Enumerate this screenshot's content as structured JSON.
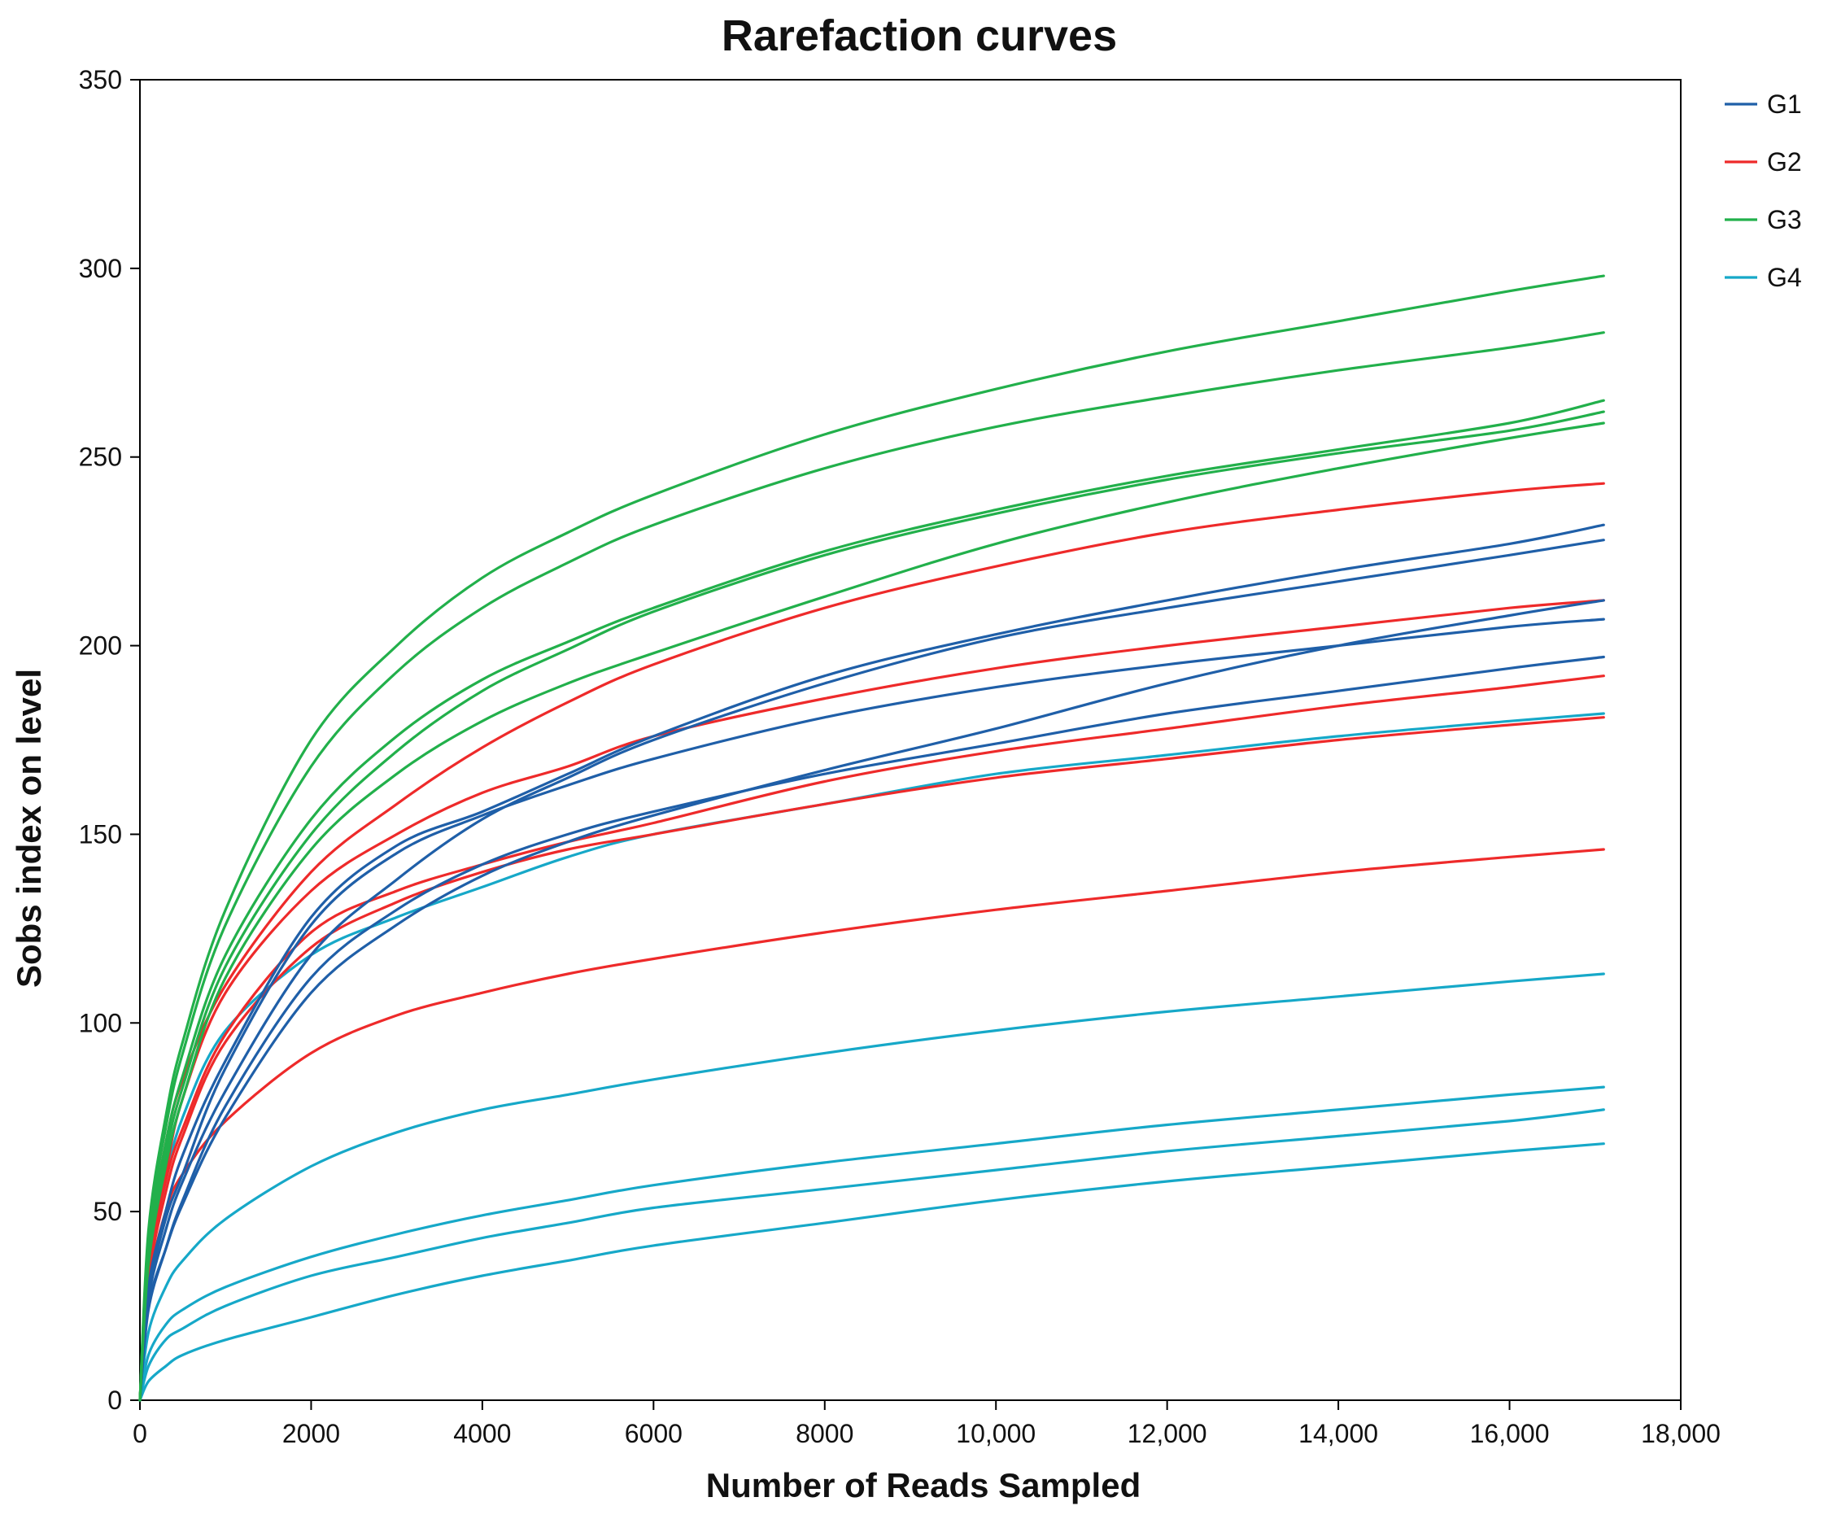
{
  "chart_data": {
    "type": "line",
    "title": "Rarefaction curves",
    "xlabel": "Number of Reads Sampled",
    "ylabel": "Sobs index on level",
    "xlim": [
      0,
      18000
    ],
    "ylim": [
      0,
      350
    ],
    "xticks": [
      0,
      2000,
      4000,
      6000,
      8000,
      10000,
      12000,
      14000,
      16000,
      18000
    ],
    "xtick_labels": [
      "0",
      "2000",
      "4000",
      "6000",
      "8000",
      "10,000",
      "12,000",
      "14,000",
      "16,000",
      "18,000"
    ],
    "yticks": [
      0,
      50,
      100,
      150,
      200,
      250,
      300,
      350
    ],
    "ytick_labels": [
      "0",
      "50",
      "100",
      "150",
      "200",
      "250",
      "300",
      "350"
    ],
    "grid": false,
    "legend_position": "top-right",
    "x": [
      0,
      100,
      300,
      500,
      1000,
      2000,
      3000,
      4000,
      5000,
      6000,
      8000,
      10000,
      12000,
      14000,
      16000,
      17100
    ],
    "groups": [
      {
        "name": "G1",
        "color": "#1f5fa8"
      },
      {
        "name": "G2",
        "color": "#ee2a2a"
      },
      {
        "name": "G3",
        "color": "#22b04b"
      },
      {
        "name": "G4",
        "color": "#16a8c8"
      }
    ],
    "series": [
      {
        "name": "G1",
        "group": 0,
        "values": [
          0,
          30,
          50,
          65,
          90,
          128,
          147,
          156,
          166,
          176,
          192,
          203,
          212,
          220,
          227,
          232
        ]
      },
      {
        "name": "G1",
        "group": 0,
        "values": [
          0,
          27,
          45,
          58,
          82,
          118,
          138,
          154,
          165,
          175,
          190,
          202,
          210,
          217,
          224,
          228
        ]
      },
      {
        "name": "G1",
        "group": 0,
        "values": [
          0,
          28,
          48,
          60,
          88,
          126,
          145,
          155,
          163,
          170,
          181,
          189,
          195,
          200,
          205,
          207
        ]
      },
      {
        "name": "G1",
        "group": 0,
        "values": [
          0,
          25,
          40,
          52,
          75,
          108,
          126,
          139,
          148,
          155,
          167,
          178,
          190,
          200,
          208,
          212
        ]
      },
      {
        "name": "G1",
        "group": 0,
        "values": [
          0,
          24,
          40,
          53,
          78,
          112,
          130,
          142,
          150,
          156,
          166,
          174,
          182,
          188,
          194,
          197
        ]
      },
      {
        "name": "G2",
        "group": 1,
        "values": [
          0,
          40,
          68,
          85,
          110,
          140,
          158,
          173,
          185,
          195,
          210,
          221,
          230,
          236,
          241,
          243
        ]
      },
      {
        "name": "G2",
        "group": 1,
        "values": [
          0,
          35,
          60,
          80,
          108,
          135,
          150,
          161,
          168,
          176,
          186,
          194,
          200,
          205,
          210,
          212
        ]
      },
      {
        "name": "G2",
        "group": 1,
        "values": [
          0,
          34,
          58,
          72,
          97,
          124,
          135,
          142,
          148,
          153,
          164,
          172,
          178,
          184,
          189,
          192
        ]
      },
      {
        "name": "G2",
        "group": 1,
        "values": [
          0,
          32,
          55,
          70,
          95,
          120,
          132,
          140,
          146,
          150,
          158,
          165,
          170,
          175,
          179,
          181
        ]
      },
      {
        "name": "G2",
        "group": 1,
        "values": [
          0,
          30,
          50,
          60,
          74,
          92,
          102,
          108,
          113,
          117,
          124,
          130,
          135,
          140,
          144,
          146
        ]
      },
      {
        "name": "G3",
        "group": 2,
        "values": [
          0,
          45,
          75,
          95,
          130,
          175,
          200,
          218,
          230,
          240,
          256,
          268,
          278,
          286,
          294,
          298
        ]
      },
      {
        "name": "G3",
        "group": 2,
        "values": [
          0,
          43,
          72,
          92,
          126,
          168,
          193,
          210,
          222,
          232,
          247,
          258,
          266,
          273,
          279,
          283
        ]
      },
      {
        "name": "G3",
        "group": 2,
        "values": [
          0,
          40,
          68,
          86,
          118,
          154,
          176,
          191,
          201,
          210,
          225,
          236,
          245,
          252,
          259,
          265
        ]
      },
      {
        "name": "G3",
        "group": 2,
        "values": [
          0,
          38,
          65,
          83,
          115,
          150,
          172,
          188,
          199,
          209,
          224,
          235,
          244,
          251,
          257,
          262
        ]
      },
      {
        "name": "G3",
        "group": 2,
        "values": [
          0,
          36,
          62,
          80,
          112,
          146,
          166,
          180,
          190,
          198,
          213,
          227,
          238,
          247,
          255,
          259
        ]
      },
      {
        "name": "G4",
        "group": 3,
        "values": [
          0,
          35,
          58,
          75,
          98,
          118,
          128,
          136,
          144,
          150,
          158,
          166,
          171,
          176,
          180,
          182
        ]
      },
      {
        "name": "G4",
        "group": 3,
        "values": [
          0,
          18,
          30,
          37,
          48,
          62,
          71,
          77,
          81,
          85,
          92,
          98,
          103,
          107,
          111,
          113
        ]
      },
      {
        "name": "G4",
        "group": 3,
        "values": [
          0,
          12,
          20,
          24,
          30,
          38,
          44,
          49,
          53,
          57,
          63,
          68,
          73,
          77,
          81,
          83
        ]
      },
      {
        "name": "G4",
        "group": 3,
        "values": [
          0,
          9,
          16,
          19,
          25,
          33,
          38,
          43,
          47,
          51,
          56,
          61,
          66,
          70,
          74,
          77
        ]
      },
      {
        "name": "G4",
        "group": 3,
        "values": [
          0,
          5,
          9,
          12,
          16,
          22,
          28,
          33,
          37,
          41,
          47,
          53,
          58,
          62,
          66,
          68
        ]
      }
    ]
  }
}
